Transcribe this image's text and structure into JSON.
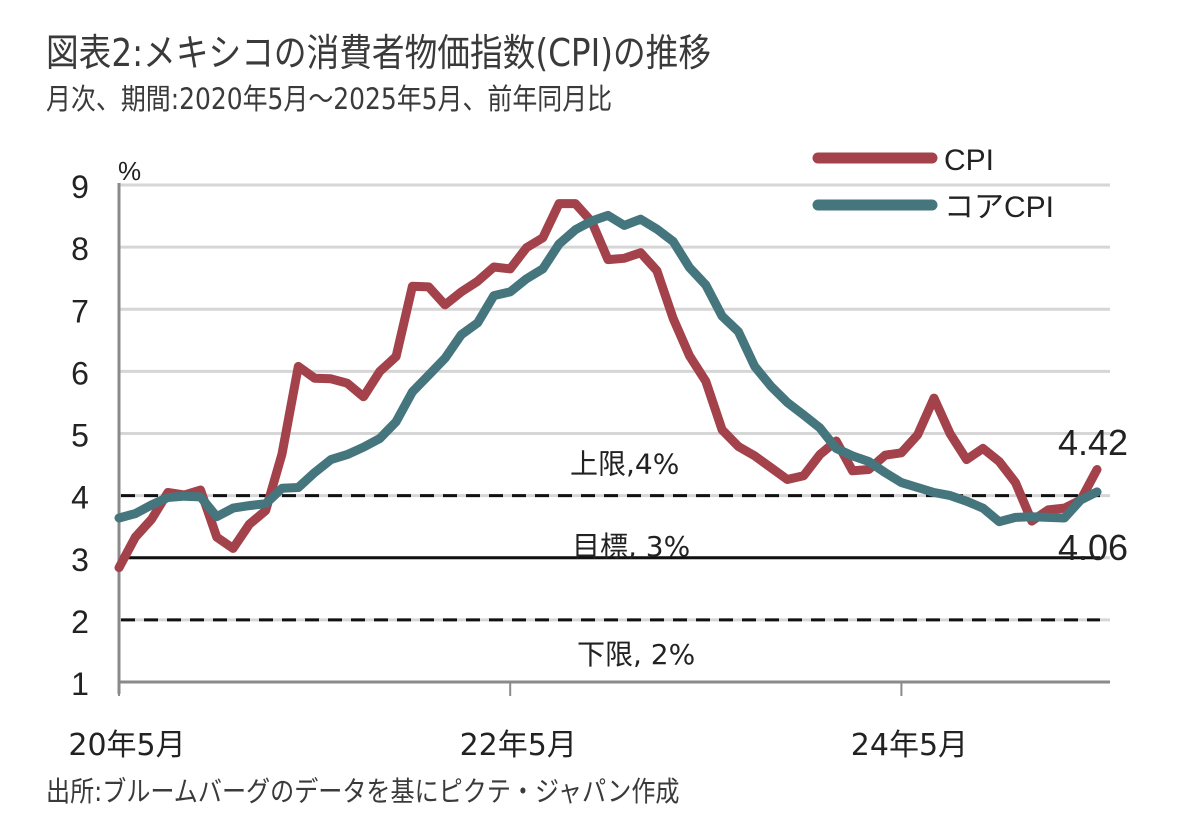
{
  "header": {
    "title": "図表2:メキシコの消費者物価指数(CPI)の推移",
    "subtitle": "月次、期間:2020年5月～2025年5月、前年同月比"
  },
  "footer": {
    "source": "出所:ブルームバーグのデータを基にピクテ・ジャパン作成"
  },
  "chart_data": {
    "type": "line",
    "title": "図表2:メキシコの消費者物価指数(CPI)の推移",
    "subtitle": "月次、期間:2020年5月～2025年5月、前年同月比",
    "xlabel": "",
    "ylabel": "%",
    "ylim": [
      1,
      9
    ],
    "yticks": [
      "1",
      "2",
      "3",
      "4",
      "5",
      "6",
      "7",
      "8",
      "9"
    ],
    "grid": true,
    "legend_position": "top-right",
    "x_start": "2020-05",
    "x_end": "2025-05",
    "xticks": [
      {
        "month_index": 0,
        "label": "20年5月"
      },
      {
        "month_index": 24,
        "label": "22年5月"
      },
      {
        "month_index": 48,
        "label": "24年5月"
      }
    ],
    "series": [
      {
        "name": "CPI",
        "color": "#A3424A",
        "values": [
          2.84,
          3.33,
          3.62,
          4.05,
          4.01,
          4.09,
          3.33,
          3.15,
          3.54,
          3.76,
          4.67,
          6.08,
          5.89,
          5.88,
          5.81,
          5.59,
          6.0,
          6.24,
          7.37,
          7.36,
          7.07,
          7.28,
          7.45,
          7.68,
          7.65,
          7.99,
          8.15,
          8.7,
          8.7,
          8.41,
          7.8,
          7.82,
          7.91,
          7.62,
          6.85,
          6.25,
          5.84,
          5.06,
          4.79,
          4.64,
          4.45,
          4.26,
          4.32,
          4.66,
          4.88,
          4.4,
          4.42,
          4.65,
          4.69,
          4.98,
          5.57,
          4.99,
          4.58,
          4.76,
          4.55,
          4.21,
          3.59,
          3.77,
          3.8,
          3.93,
          4.42
        ]
      },
      {
        "name": "コアCPI",
        "color": "#45757D",
        "values": [
          3.64,
          3.71,
          3.85,
          3.97,
          3.99,
          3.98,
          3.66,
          3.8,
          3.84,
          3.87,
          4.12,
          4.13,
          4.37,
          4.58,
          4.66,
          4.78,
          4.92,
          5.19,
          5.67,
          5.94,
          6.21,
          6.59,
          6.78,
          7.22,
          7.28,
          7.49,
          7.65,
          8.05,
          8.28,
          8.42,
          8.51,
          8.35,
          8.45,
          8.29,
          8.09,
          7.67,
          7.39,
          6.89,
          6.64,
          6.08,
          5.76,
          5.5,
          5.3,
          5.09,
          4.76,
          4.64,
          4.55,
          4.37,
          4.21,
          4.13,
          4.05,
          4.0,
          3.91,
          3.8,
          3.58,
          3.65,
          3.66,
          3.65,
          3.64,
          3.93,
          4.06
        ]
      }
    ],
    "reference_lines": [
      {
        "value": 4,
        "style": "dashed",
        "label": "上限,4%"
      },
      {
        "value": 3,
        "style": "solid",
        "label": "目標, 3%"
      },
      {
        "value": 2,
        "style": "dashed",
        "label": "下限, 2%"
      }
    ],
    "annotations": [
      {
        "series": "CPI",
        "label": "4.42"
      },
      {
        "series": "コアCPI",
        "label": "4.06"
      }
    ]
  }
}
